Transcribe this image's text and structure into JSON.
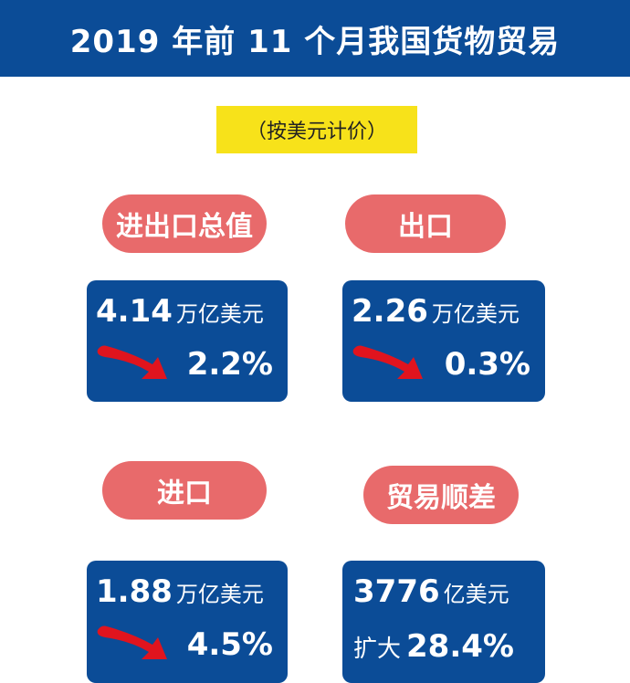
{
  "header": {
    "title": "2019 年前 11 个月我国货物贸易"
  },
  "subtitle": "（按美元计价）",
  "colors": {
    "header_bg": "#0b4c97",
    "subtitle_bg": "#f7e21a",
    "pill_bg": "#e86a6b",
    "card_bg": "#0b4c97",
    "arrow": "#e0141e"
  },
  "cards": [
    {
      "label": "进出口总值",
      "value": "4.14",
      "unit": "万亿美元",
      "change": "2.2%",
      "icon": "down-arrow-icon"
    },
    {
      "label": "出口",
      "value": "2.26",
      "unit": "万亿美元",
      "change": "0.3%",
      "icon": "down-arrow-icon"
    },
    {
      "label": "进口",
      "value": "1.88",
      "unit": "万亿美元",
      "change": "4.5%",
      "icon": "down-arrow-icon"
    },
    {
      "label": "贸易顺差",
      "value": "3776",
      "unit": "亿美元",
      "change_text": "扩大",
      "change": "28.4%"
    }
  ]
}
